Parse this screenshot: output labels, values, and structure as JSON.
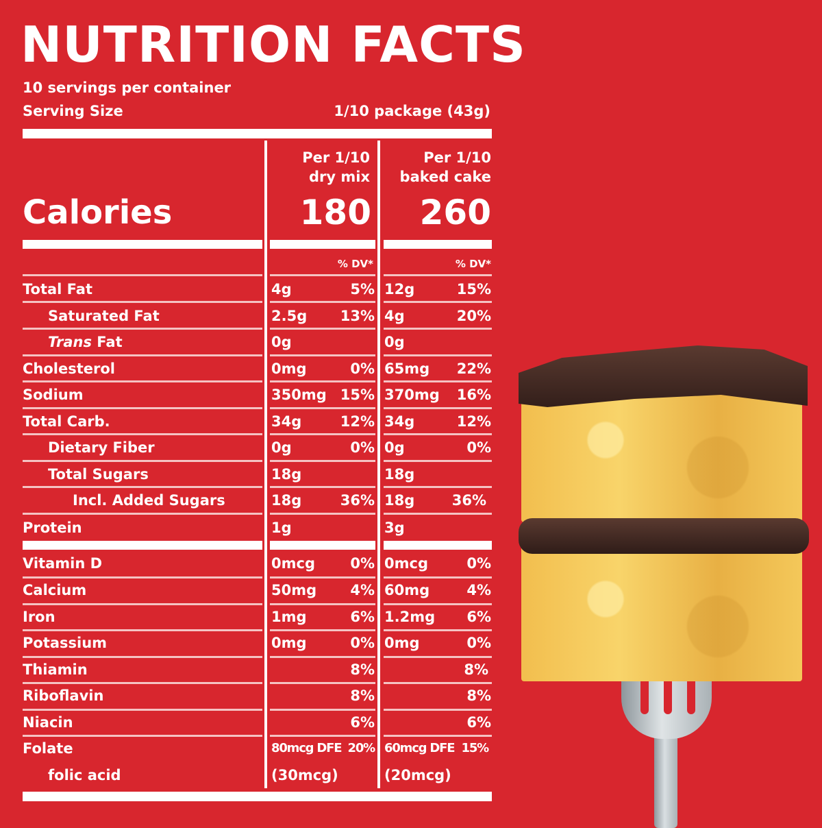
{
  "label": {
    "title": "NUTRITION  FACTS",
    "servings_per_container": "10 servings per container",
    "serving_size_label": "Serving Size",
    "serving_size_value": "1/10 package (43g)",
    "columns": [
      {
        "line1": "Per 1/10",
        "line2": "dry mix",
        "calories": "180",
        "dv_header": "% DV*"
      },
      {
        "line1": "Per 1/10",
        "line2": "baked cake",
        "calories": "260",
        "dv_header": "% DV*"
      }
    ],
    "calories_label": "Calories",
    "rows": [
      {
        "name": "Total Fat",
        "indent": 0,
        "dry_amt": "4g",
        "dry_pct": "5%",
        "baked_amt": "12g",
        "baked_pct": "15%"
      },
      {
        "name": "Saturated Fat",
        "indent": 1,
        "dry_amt": "2.5g",
        "dry_pct": "13%",
        "baked_amt": "4g",
        "baked_pct": "20%"
      },
      {
        "name_italic": "Trans",
        "name": " Fat",
        "indent": 1,
        "dry_amt": "0g",
        "dry_pct": "",
        "baked_amt": "0g",
        "baked_pct": ""
      },
      {
        "name": "Cholesterol",
        "indent": 0,
        "dry_amt": "0mg",
        "dry_pct": "0%",
        "baked_amt": "65mg",
        "baked_pct": "22%"
      },
      {
        "name": "Sodium",
        "indent": 0,
        "dry_amt": "350mg",
        "dry_pct": "15%",
        "baked_amt": "370mg",
        "baked_pct": "16%"
      },
      {
        "name": "Total Carb.",
        "indent": 0,
        "dry_amt": "34g",
        "dry_pct": "12%",
        "baked_amt": "34g",
        "baked_pct": "12%"
      },
      {
        "name": "Dietary Fiber",
        "indent": 1,
        "dry_amt": "0g",
        "dry_pct": "0%",
        "baked_amt": "0g",
        "baked_pct": "0%"
      },
      {
        "name": "Total Sugars",
        "indent": 1,
        "dry_amt": "18g",
        "dry_pct": "",
        "baked_amt": "18g",
        "baked_pct": ""
      },
      {
        "name": "Incl. Added Sugars",
        "indent": 2,
        "dry_amt": "18g",
        "dry_pct": "36%",
        "baked_amt": "18g",
        "baked_pct": "36%"
      },
      {
        "name": "Protein",
        "indent": 0,
        "dry_amt": "1g",
        "dry_pct": "",
        "baked_amt": "3g",
        "baked_pct": ""
      },
      {
        "name": "Vitamin D",
        "indent": 0,
        "dry_amt": "0mcg",
        "dry_pct": "0%",
        "baked_amt": "0mcg",
        "baked_pct": "0%"
      },
      {
        "name": "Calcium",
        "indent": 0,
        "dry_amt": "50mg",
        "dry_pct": "4%",
        "baked_amt": "60mg",
        "baked_pct": "4%"
      },
      {
        "name": "Iron",
        "indent": 0,
        "dry_amt": "1mg",
        "dry_pct": "6%",
        "baked_amt": "1.2mg",
        "baked_pct": "6%"
      },
      {
        "name": "Potassium",
        "indent": 0,
        "dry_amt": "0mg",
        "dry_pct": "0%",
        "baked_amt": "0mg",
        "baked_pct": "0%"
      },
      {
        "name": "Thiamin",
        "indent": 0,
        "dry_amt": "",
        "dry_pct": "8%",
        "baked_amt": "",
        "baked_pct": "8%"
      },
      {
        "name": "Riboflavin",
        "indent": 0,
        "dry_amt": "",
        "dry_pct": "8%",
        "baked_amt": "",
        "baked_pct": "8%"
      },
      {
        "name": "Niacin",
        "indent": 0,
        "dry_amt": "",
        "dry_pct": "6%",
        "baked_amt": "",
        "baked_pct": "6%"
      },
      {
        "name": "Folate",
        "indent": 0,
        "dry_amt": "80mcg DFE",
        "dry_pct": "20%",
        "baked_amt": "60mcg DFE",
        "baked_pct": "15%"
      },
      {
        "name": "folic acid",
        "indent": 1,
        "dry_amt": "(30mcg)",
        "dry_pct": "",
        "baked_amt": "(20mcg)",
        "baked_pct": ""
      }
    ]
  },
  "image": {
    "alt": "slice of yellow cake with chocolate frosting on a fork"
  },
  "colors": {
    "background": "#D8262E",
    "text": "#FFFFFF"
  }
}
